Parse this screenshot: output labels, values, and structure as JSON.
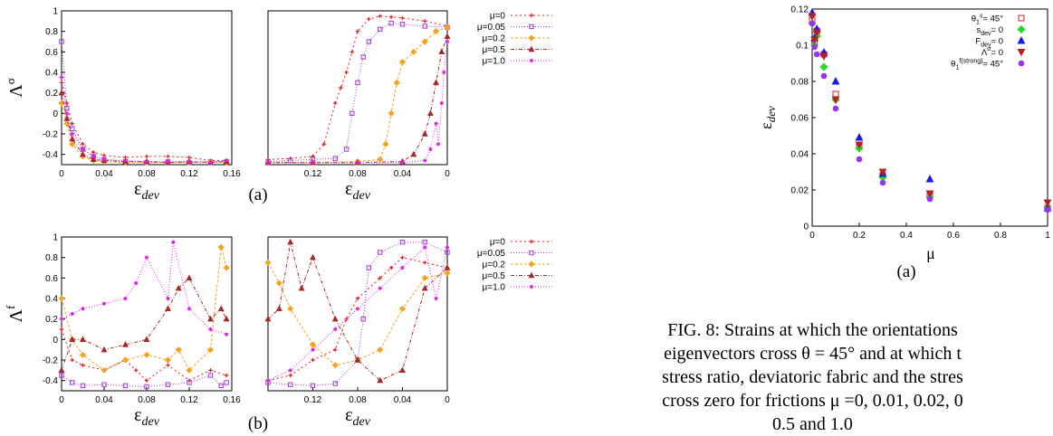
{
  "colors": {
    "mu0": "#e41a1c",
    "mu005": "#a03cd8",
    "mu02": "#f7a21b",
    "mu05": "#a52a2a",
    "mu10": "#e020e0",
    "theta": "#e41a1c",
    "sdev": "#22dd22",
    "Fdev": "#1a1ae6",
    "Lambda": "#b22222",
    "theta_f": "#9b30ff"
  },
  "panel_labels": {
    "a": "(a)",
    "b": "(b)",
    "right": "(a)"
  },
  "caption": {
    "line1": "FIG. 8: Strains at which the orientations",
    "line2": "eigenvectors cross θ = 45° and at which t",
    "line3": "stress ratio, deviatoric fabric and the stres",
    "line4": "cross zero for frictions μ =0, 0.01, 0.02, 0",
    "line5": "0.5 and 1.0"
  },
  "chart_data": [
    {
      "id": "a-left",
      "type": "line",
      "ylabel": "Λσ",
      "xlabel": "εdev",
      "xlim": [
        0,
        0.16
      ],
      "ylim": [
        -0.5,
        1
      ],
      "xticks": [
        "0",
        "0.04",
        "0.08",
        "0.12",
        "0.16"
      ],
      "yticks": [
        "1",
        "0.8",
        "0.6",
        "0.4",
        "0.2",
        "0",
        "-0.2",
        "-0.4"
      ],
      "legend": [
        "μ=0",
        "μ=0.05",
        "μ=0.2",
        "μ=0.5",
        "μ=1.0"
      ],
      "series": [
        {
          "name": "μ=0",
          "x": [
            0,
            0.005,
            0.01,
            0.02,
            0.03,
            0.04,
            0.06,
            0.08,
            0.1,
            0.12,
            0.14,
            0.155
          ],
          "y": [
            0.3,
            0.1,
            -0.1,
            -0.3,
            -0.38,
            -0.41,
            -0.43,
            -0.42,
            -0.42,
            -0.43,
            -0.46,
            -0.46
          ]
        },
        {
          "name": "μ=0.05",
          "x": [
            0,
            0.005,
            0.01,
            0.02,
            0.03,
            0.04,
            0.06,
            0.08,
            0.1,
            0.12,
            0.14,
            0.155
          ],
          "y": [
            0.7,
            0.05,
            -0.15,
            -0.35,
            -0.42,
            -0.45,
            -0.47,
            -0.48,
            -0.47,
            -0.48,
            -0.47,
            -0.47
          ]
        },
        {
          "name": "μ=0.2",
          "x": [
            0,
            0.005,
            0.01,
            0.02,
            0.03,
            0.04,
            0.06,
            0.08,
            0.1,
            0.12,
            0.14,
            0.155
          ],
          "y": [
            0.1,
            -0.1,
            -0.3,
            -0.42,
            -0.46,
            -0.47,
            -0.48,
            -0.48,
            -0.48,
            -0.48,
            -0.47,
            -0.48
          ]
        },
        {
          "name": "μ=0.5",
          "x": [
            0,
            0.005,
            0.01,
            0.02,
            0.03,
            0.04,
            0.06,
            0.08,
            0.1,
            0.12,
            0.14,
            0.155
          ],
          "y": [
            0.2,
            -0.05,
            -0.25,
            -0.4,
            -0.45,
            -0.46,
            -0.47,
            -0.47,
            -0.48,
            -0.47,
            -0.48,
            -0.47
          ]
        },
        {
          "name": "μ=1.0",
          "x": [
            0,
            0.005,
            0.01,
            0.02,
            0.03,
            0.04,
            0.06,
            0.08,
            0.1,
            0.12,
            0.14,
            0.155
          ],
          "y": [
            0.35,
            0,
            -0.2,
            -0.35,
            -0.42,
            -0.45,
            -0.46,
            -0.47,
            -0.47,
            -0.47,
            -0.48,
            -0.46
          ]
        }
      ]
    },
    {
      "id": "a-right",
      "type": "line",
      "xlabel": "εdev",
      "xlim": [
        0.16,
        0
      ],
      "ylim": [
        -0.5,
        1
      ],
      "xticks": [
        "0.12",
        "0.08",
        "0.04",
        "0"
      ],
      "legend": [
        "μ=0",
        "μ=0.05",
        "μ=0.2",
        "μ=0.5",
        "μ=1.0"
      ],
      "series": [
        {
          "name": "μ=0",
          "x": [
            0.16,
            0.14,
            0.12,
            0.11,
            0.1,
            0.095,
            0.09,
            0.085,
            0.08,
            0.07,
            0.06,
            0.05,
            0.04,
            0.02,
            0
          ],
          "y": [
            -0.45,
            -0.44,
            -0.42,
            -0.3,
            0.1,
            0.25,
            0.4,
            0.6,
            0.8,
            0.92,
            0.95,
            0.94,
            0.93,
            0.9,
            0.85
          ]
        },
        {
          "name": "μ=0.05",
          "x": [
            0.16,
            0.14,
            0.12,
            0.1,
            0.09,
            0.085,
            0.08,
            0.075,
            0.07,
            0.06,
            0.05,
            0.04,
            0.02,
            0
          ],
          "y": [
            -0.47,
            -0.46,
            -0.45,
            -0.44,
            -0.35,
            0,
            0.3,
            0.55,
            0.7,
            0.82,
            0.88,
            0.87,
            0.85,
            0.84
          ]
        },
        {
          "name": "μ=0.2",
          "x": [
            0.16,
            0.12,
            0.08,
            0.06,
            0.055,
            0.05,
            0.045,
            0.04,
            0.03,
            0.02,
            0.01,
            0
          ],
          "y": [
            -0.48,
            -0.48,
            -0.47,
            -0.45,
            -0.3,
            0,
            0.3,
            0.5,
            0.6,
            0.7,
            0.8,
            0.84
          ]
        },
        {
          "name": "μ=0.5",
          "x": [
            0.16,
            0.12,
            0.08,
            0.04,
            0.03,
            0.02,
            0.015,
            0.01,
            0.005,
            0
          ],
          "y": [
            -0.48,
            -0.48,
            -0.48,
            -0.47,
            -0.4,
            -0.2,
            0,
            0.3,
            0.6,
            0.75
          ]
        },
        {
          "name": "μ=1.0",
          "x": [
            0.16,
            0.12,
            0.08,
            0.04,
            0.02,
            0.015,
            0.01,
            0.008,
            0.005,
            0.003,
            0
          ],
          "y": [
            -0.48,
            -0.48,
            -0.48,
            -0.48,
            -0.46,
            -0.35,
            -0.1,
            -0.3,
            0.1,
            0.4,
            0.7
          ]
        }
      ]
    },
    {
      "id": "b-left",
      "type": "line",
      "ylabel": "Λf",
      "xlabel": "εdev",
      "xlim": [
        0,
        0.16
      ],
      "ylim": [
        -0.5,
        1
      ],
      "xticks": [
        "0",
        "0.04",
        "0.08",
        "0.12",
        "0.16"
      ],
      "yticks": [
        "1",
        "0.8",
        "0.6",
        "0.4",
        "0.2",
        "0",
        "-0.2",
        "-0.4"
      ],
      "legend": [
        "μ=0",
        "μ=0.05",
        "μ=0.2",
        "μ=0.5",
        "μ=1.0"
      ],
      "series": [
        {
          "name": "μ=0",
          "x": [
            0,
            0.01,
            0.02,
            0.04,
            0.06,
            0.07,
            0.08,
            0.1,
            0.12,
            0.14,
            0.155
          ],
          "y": [
            0.1,
            -0.2,
            -0.25,
            -0.3,
            -0.2,
            -0.3,
            -0.4,
            -0.25,
            -0.4,
            -0.3,
            -0.35
          ]
        },
        {
          "name": "μ=0.05",
          "x": [
            0,
            0.01,
            0.02,
            0.04,
            0.06,
            0.08,
            0.1,
            0.12,
            0.14,
            0.15,
            0.155
          ],
          "y": [
            -0.35,
            -0.42,
            -0.45,
            -0.44,
            -0.45,
            -0.46,
            -0.44,
            -0.42,
            -0.35,
            -0.45,
            -0.42
          ]
        },
        {
          "name": "μ=0.2",
          "x": [
            0,
            0.01,
            0.02,
            0.04,
            0.06,
            0.08,
            0.1,
            0.11,
            0.12,
            0.14,
            0.15,
            0.155
          ],
          "y": [
            0.4,
            0,
            -0.15,
            -0.3,
            -0.2,
            -0.15,
            -0.2,
            -0.1,
            -0.3,
            -0.1,
            0.9,
            0.7
          ]
        },
        {
          "name": "μ=0.5",
          "x": [
            0,
            0.01,
            0.02,
            0.04,
            0.06,
            0.08,
            0.1,
            0.11,
            0.12,
            0.14,
            0.15,
            0.155
          ],
          "y": [
            -0.3,
            0,
            0,
            -0.1,
            -0.05,
            0,
            0.3,
            0.5,
            0.6,
            0.2,
            0.3,
            0.2
          ]
        },
        {
          "name": "μ=1.0",
          "x": [
            0,
            0.01,
            0.02,
            0.04,
            0.06,
            0.07,
            0.08,
            0.1,
            0.105,
            0.12,
            0.14,
            0.155
          ],
          "y": [
            0.2,
            0.25,
            0.3,
            0.35,
            0.4,
            0.55,
            0.8,
            0.4,
            0.95,
            0.3,
            0.1,
            0.05
          ]
        }
      ]
    },
    {
      "id": "b-right",
      "type": "line",
      "xlabel": "εdev",
      "xlim": [
        0.16,
        0
      ],
      "ylim": [
        -0.5,
        1
      ],
      "xticks": [
        "0.12",
        "0.08",
        "0.04",
        "0"
      ],
      "legend": [
        "μ=0",
        "μ=0.05",
        "μ=0.2",
        "μ=0.5",
        "μ=1.0"
      ],
      "series": [
        {
          "name": "μ=0",
          "x": [
            0.16,
            0.14,
            0.12,
            0.1,
            0.09,
            0.08,
            0.06,
            0.05,
            0.04,
            0.02,
            0
          ],
          "y": [
            -0.4,
            -0.35,
            -0.2,
            -0.1,
            0.2,
            0.4,
            0.6,
            0.7,
            0.8,
            0.75,
            0.7
          ]
        },
        {
          "name": "μ=0.05",
          "x": [
            0.16,
            0.14,
            0.12,
            0.1,
            0.08,
            0.075,
            0.07,
            0.06,
            0.04,
            0.02,
            0
          ],
          "y": [
            -0.42,
            -0.44,
            -0.45,
            -0.43,
            -0.2,
            0.2,
            0.7,
            0.85,
            0.95,
            0.95,
            0.85
          ]
        },
        {
          "name": "μ=0.2",
          "x": [
            0.16,
            0.15,
            0.14,
            0.12,
            0.1,
            0.08,
            0.06,
            0.04,
            0.02,
            0
          ],
          "y": [
            0.75,
            0.55,
            0.3,
            -0.05,
            -0.25,
            -0.2,
            -0.1,
            0.3,
            0.6,
            0.65
          ]
        },
        {
          "name": "μ=0.5",
          "x": [
            0.16,
            0.15,
            0.14,
            0.13,
            0.12,
            0.1,
            0.08,
            0.06,
            0.04,
            0.02,
            0
          ],
          "y": [
            0.2,
            0.3,
            0.95,
            0.5,
            0.8,
            0.2,
            -0.2,
            -0.4,
            -0.3,
            0.5,
            0.7
          ]
        },
        {
          "name": "μ=1.0",
          "x": [
            0.16,
            0.14,
            0.12,
            0.1,
            0.08,
            0.06,
            0.04,
            0.02,
            0.01,
            0
          ],
          "y": [
            -0.4,
            -0.3,
            -0.1,
            0.1,
            0.3,
            0.5,
            0.7,
            0.9,
            0.4,
            0.9
          ]
        }
      ]
    },
    {
      "id": "right",
      "type": "scatter",
      "xlabel": "μ",
      "ylabel": "εdev",
      "xlim": [
        0,
        1
      ],
      "ylim": [
        0,
        0.12
      ],
      "xticks": [
        "0",
        "0.2",
        "0.4",
        "0.6",
        "0.8",
        "1"
      ],
      "yticks": [
        "0.12",
        "0.1",
        "0.08",
        "0.06",
        "0.04",
        "0.02",
        "0"
      ],
      "legend": [
        "θ1s= 45°",
        "sdev= 0",
        "Fdev= 0",
        "Λσ= 0",
        "θ1f(strong)= 45°"
      ],
      "series": [
        {
          "name": "θ1s= 45°",
          "marker": "square",
          "x": [
            0,
            0.01,
            0.02,
            0.05,
            0.1,
            0.2,
            0.3,
            0.5,
            1.0
          ],
          "y": [
            0.114,
            0.101,
            0.108,
            0.095,
            0.073,
            0.044,
            0.028,
            0.017,
            0.01
          ]
        },
        {
          "name": "sdev= 0",
          "marker": "diamond",
          "x": [
            0,
            0.01,
            0.02,
            0.05,
            0.1,
            0.2,
            0.3,
            0.5,
            1.0
          ],
          "y": [
            0.112,
            0.1,
            0.105,
            0.088,
            0.07,
            0.043,
            0.027,
            0.016,
            0.01
          ]
        },
        {
          "name": "Fdev= 0",
          "marker": "triangle-up",
          "x": [
            0,
            0.01,
            0.02,
            0.05,
            0.1,
            0.2,
            0.3,
            0.5,
            1.0
          ],
          "y": [
            0.118,
            0.104,
            0.109,
            0.096,
            0.08,
            0.049,
            0.029,
            0.026,
            0.01
          ]
        },
        {
          "name": "Λσ= 0",
          "marker": "triangle-down",
          "x": [
            0,
            0.01,
            0.02,
            0.05,
            0.1,
            0.2,
            0.3,
            0.5,
            1.0
          ],
          "y": [
            0.116,
            0.103,
            0.107,
            0.094,
            0.07,
            0.045,
            0.03,
            0.018,
            0.013
          ]
        },
        {
          "name": "θ1f(strong)= 45°",
          "marker": "circle",
          "x": [
            0,
            0.01,
            0.02,
            0.05,
            0.1,
            0.2,
            0.3,
            0.5,
            1.0
          ],
          "y": [
            0.112,
            0.099,
            0.095,
            0.083,
            0.065,
            0.037,
            0.024,
            0.015,
            0.009
          ]
        }
      ]
    }
  ]
}
